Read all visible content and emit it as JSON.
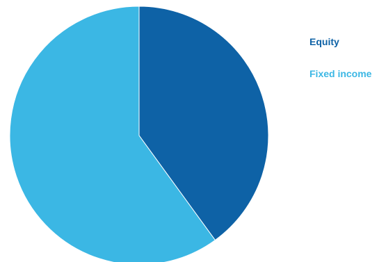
{
  "chart_data": {
    "type": "pie",
    "categories": [
      "Equity",
      "Fixed income"
    ],
    "values": [
      40,
      60
    ],
    "colors": [
      "#0e62a6",
      "#3bb7e4"
    ],
    "start_angle_deg": 0,
    "direction": "clockwise",
    "legend_position": "right"
  },
  "legend": {
    "items": [
      "Equity",
      "Fixed income"
    ]
  }
}
